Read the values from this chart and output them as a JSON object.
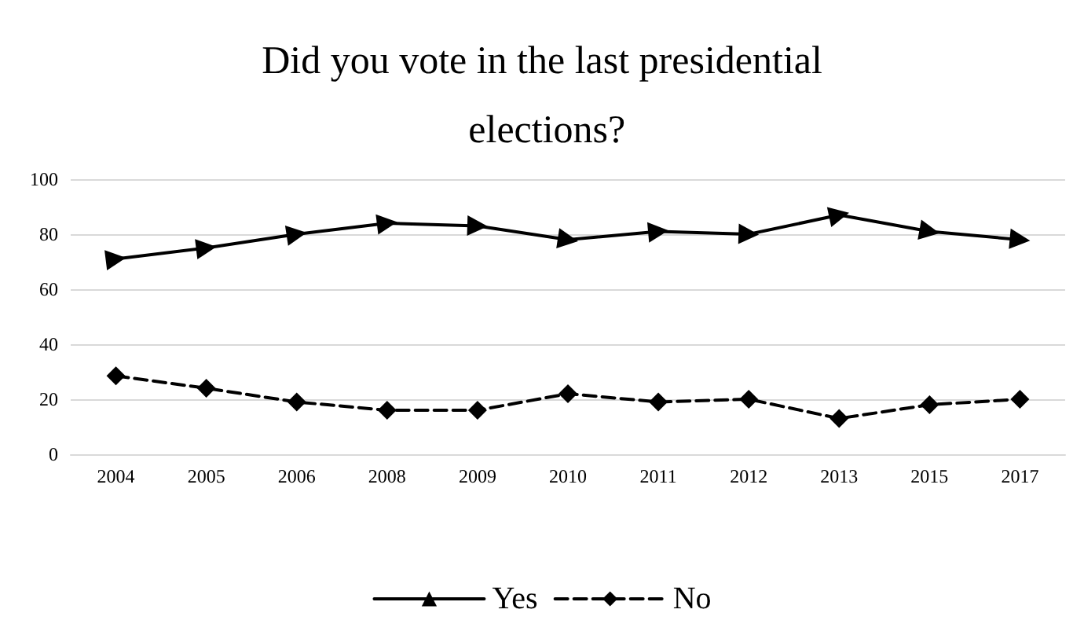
{
  "chart_data": {
    "type": "line",
    "title": "Did you vote in the last presidential elections?",
    "categories": [
      "2004",
      "2005",
      "2006",
      "2008",
      "2009",
      "2010",
      "2011",
      "2012",
      "2013",
      "2015",
      "2017"
    ],
    "series": [
      {
        "name": "Yes",
        "color": "#000000",
        "marker": "triangle",
        "line_style": "solid",
        "values": [
          71,
          75,
          80,
          84,
          83,
          78,
          81,
          80,
          87,
          81,
          78
        ]
      },
      {
        "name": "No",
        "color": "#000000",
        "marker": "diamond",
        "line_style": "dashed",
        "values": [
          28.5,
          24,
          19,
          16,
          16,
          22,
          19,
          20,
          13,
          18,
          20
        ]
      }
    ],
    "ylim": [
      0,
      100
    ],
    "yticks": [
      0,
      20,
      40,
      60,
      80,
      100
    ],
    "grid": "y",
    "legend": "bottom"
  }
}
